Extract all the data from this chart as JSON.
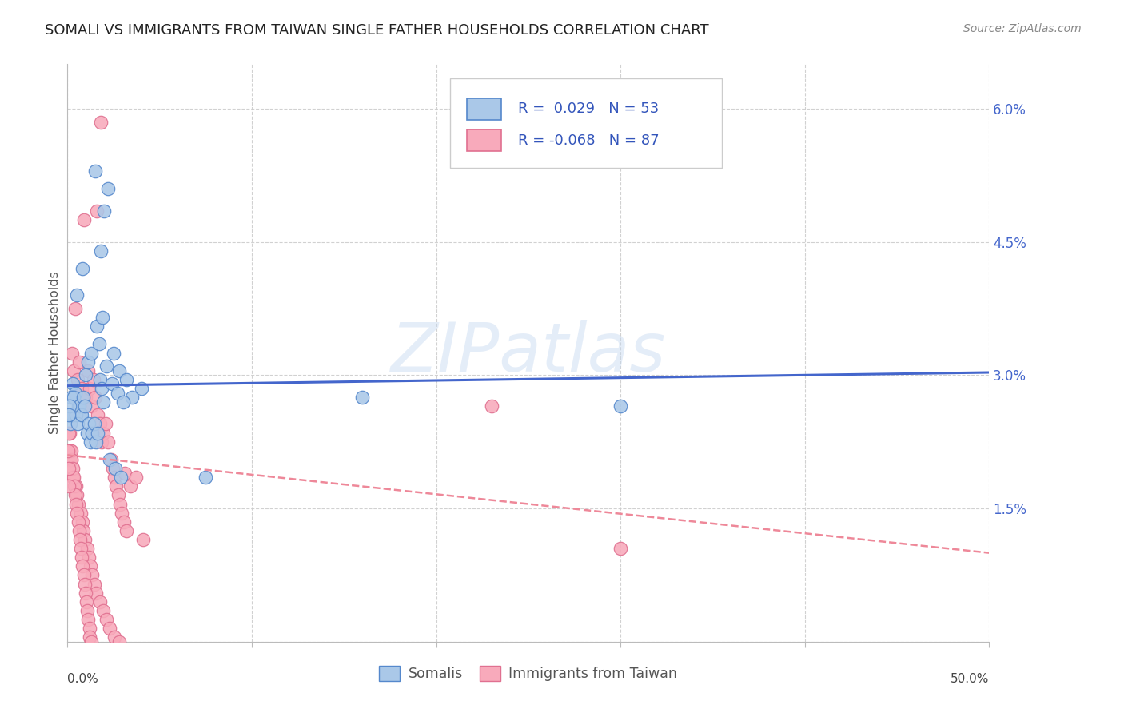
{
  "title": "SOMALI VS IMMIGRANTS FROM TAIWAN SINGLE FATHER HOUSEHOLDS CORRELATION CHART",
  "source": "Source: ZipAtlas.com",
  "ylabel": "Single Father Households",
  "xlim": [
    0.0,
    50.0
  ],
  "ylim": [
    0.0,
    6.5
  ],
  "ytick_vals": [
    0.0,
    1.5,
    3.0,
    4.5,
    6.0
  ],
  "ytick_labels": [
    "",
    "1.5%",
    "3.0%",
    "4.5%",
    "6.0%"
  ],
  "somali_R": "0.029",
  "somali_N": "53",
  "taiwan_R": "-0.068",
  "taiwan_N": "87",
  "somali_dot_color": "#aac8e8",
  "somali_edge_color": "#5588cc",
  "taiwan_dot_color": "#f8aabb",
  "taiwan_edge_color": "#e07090",
  "somali_line_color": "#4466cc",
  "taiwan_line_color": "#ee8899",
  "legend_label_somali": "Somalis",
  "legend_label_taiwan": "Immigrants from Taiwan",
  "watermark": "ZIPatlas",
  "bg_color": "#ffffff",
  "grid_color": "#cccccc",
  "title_color": "#222222",
  "source_color": "#888888",
  "ylabel_color": "#555555",
  "ytick_color": "#4466cc",
  "xtick_color": "#444444",
  "legend_R_color": "#3355bb",
  "somali_line_intercept": 2.88,
  "somali_line_slope": 0.003,
  "taiwan_line_intercept": 2.1,
  "taiwan_line_slope": -0.022,
  "somali_x": [
    1.5,
    2.2,
    2.0,
    1.8,
    0.8,
    0.5,
    0.3,
    0.4,
    0.6,
    0.7,
    1.0,
    1.1,
    1.3,
    1.6,
    1.7,
    1.9,
    2.5,
    2.8,
    3.2,
    0.2,
    0.15,
    0.25,
    0.35,
    0.45,
    0.55,
    0.65,
    0.75,
    0.85,
    0.95,
    1.05,
    1.15,
    1.25,
    1.35,
    1.45,
    1.55,
    1.65,
    1.75,
    1.85,
    1.95,
    2.1,
    2.3,
    2.6,
    16.0,
    30.0,
    2.9,
    4.0,
    3.5,
    0.1,
    0.05,
    7.5,
    2.4,
    2.7,
    3.0
  ],
  "somali_y": [
    5.3,
    5.1,
    4.85,
    4.4,
    4.2,
    3.9,
    2.9,
    2.8,
    2.65,
    2.55,
    3.0,
    3.15,
    3.25,
    3.55,
    3.35,
    3.65,
    3.25,
    3.05,
    2.95,
    2.75,
    2.45,
    2.55,
    2.75,
    2.55,
    2.45,
    2.65,
    2.55,
    2.75,
    2.65,
    2.35,
    2.45,
    2.25,
    2.35,
    2.45,
    2.25,
    2.35,
    2.95,
    2.85,
    2.7,
    3.1,
    2.05,
    1.95,
    2.75,
    2.65,
    1.85,
    2.85,
    2.75,
    2.65,
    2.55,
    1.85,
    2.9,
    2.8,
    2.7
  ],
  "taiwan_x": [
    1.8,
    1.6,
    0.9,
    0.4,
    0.25,
    0.35,
    0.55,
    0.65,
    0.75,
    1.0,
    1.1,
    1.2,
    1.3,
    1.4,
    1.5,
    1.65,
    1.75,
    1.85,
    1.95,
    2.05,
    2.2,
    2.35,
    2.45,
    2.55,
    2.65,
    2.75,
    2.85,
    2.95,
    3.05,
    3.2,
    0.15,
    0.2,
    0.3,
    0.45,
    0.5,
    0.6,
    0.7,
    0.8,
    0.85,
    0.95,
    1.05,
    1.15,
    1.25,
    1.35,
    1.45,
    1.55,
    0.08,
    0.12,
    0.18,
    0.22,
    0.28,
    0.32,
    0.38,
    0.42,
    0.48,
    0.52,
    0.58,
    0.62,
    0.68,
    0.72,
    0.78,
    0.82,
    0.88,
    0.92,
    0.98,
    1.02,
    1.08,
    1.12,
    1.18,
    1.22,
    1.28,
    1.75,
    1.92,
    2.1,
    2.3,
    2.55,
    2.8,
    3.1,
    3.4,
    30.0,
    23.0,
    3.7,
    4.1,
    0.06,
    0.04,
    0.07,
    0.09
  ],
  "taiwan_y": [
    5.85,
    4.85,
    4.75,
    3.75,
    3.25,
    3.05,
    2.95,
    3.15,
    2.85,
    2.75,
    3.05,
    2.85,
    2.65,
    2.95,
    2.75,
    2.55,
    2.45,
    2.25,
    2.35,
    2.45,
    2.25,
    2.05,
    1.95,
    1.85,
    1.75,
    1.65,
    1.55,
    1.45,
    1.35,
    1.25,
    2.15,
    2.05,
    1.85,
    1.75,
    1.65,
    1.55,
    1.45,
    1.35,
    1.25,
    1.15,
    1.05,
    0.95,
    0.85,
    0.75,
    0.65,
    0.55,
    2.55,
    2.35,
    2.15,
    2.05,
    1.95,
    1.85,
    1.75,
    1.65,
    1.55,
    1.45,
    1.35,
    1.25,
    1.15,
    1.05,
    0.95,
    0.85,
    0.75,
    0.65,
    0.55,
    0.45,
    0.35,
    0.25,
    0.15,
    0.05,
    0.0,
    0.45,
    0.35,
    0.25,
    0.15,
    0.05,
    0.0,
    1.9,
    1.75,
    1.05,
    2.65,
    1.85,
    1.15,
    2.35,
    2.15,
    1.95,
    1.75
  ]
}
